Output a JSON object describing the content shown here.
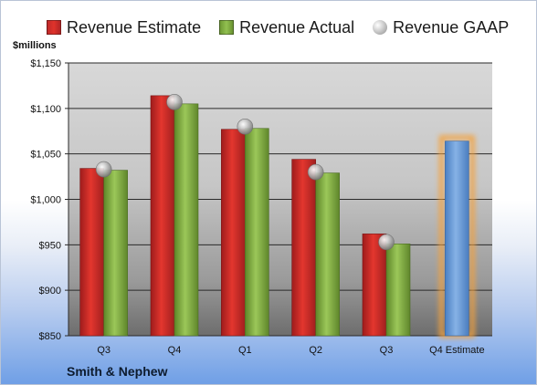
{
  "legend": {
    "estimate": "Revenue Estimate",
    "actual": "Revenue Actual",
    "gaap": "Revenue GAAP"
  },
  "company": "Smith & Nephew",
  "colors": {
    "estimate": "#d92d2d",
    "actual": "#8cb84a",
    "gaap": "#c0c0c0",
    "forecast": "#6f9fd8",
    "forecast_glow": "#f5a23c"
  },
  "chart_data": {
    "type": "bar",
    "ylabel": "$millions",
    "ylim": [
      850,
      1150
    ],
    "yticks": [
      850,
      900,
      950,
      1000,
      1050,
      1100,
      1150
    ],
    "ytick_labels": [
      "$850",
      "$900",
      "$950",
      "$1,000",
      "$1,050",
      "$1,100",
      "$1,150"
    ],
    "grid": true,
    "legend_position": "top",
    "categories": [
      "Q3",
      "Q4",
      "Q1",
      "Q2",
      "Q3",
      "Q4 Estimate"
    ],
    "series": [
      {
        "name": "Revenue Estimate",
        "values": [
          1034,
          1114,
          1077,
          1044,
          962,
          null
        ]
      },
      {
        "name": "Revenue Actual",
        "values": [
          1032,
          1105,
          1078,
          1029,
          951,
          null
        ]
      },
      {
        "name": "Revenue GAAP",
        "values": [
          1033,
          1107,
          1080,
          1030,
          953,
          null
        ]
      }
    ],
    "forecast": {
      "category": "Q4 Estimate",
      "value": 1064
    }
  }
}
